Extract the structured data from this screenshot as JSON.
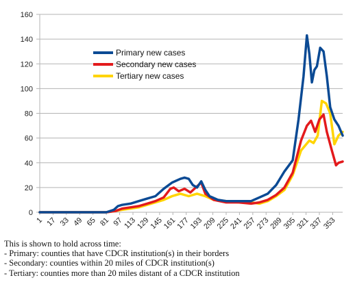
{
  "chart_data": {
    "type": "line",
    "xlabel": "",
    "ylabel": "",
    "ylim": [
      0,
      160
    ],
    "yticks": [
      0,
      20,
      40,
      60,
      80,
      100,
      120,
      140,
      160
    ],
    "xlim": [
      1,
      365
    ],
    "xticks": [
      1,
      17,
      33,
      49,
      65,
      81,
      97,
      113,
      129,
      145,
      161,
      177,
      193,
      209,
      225,
      241,
      257,
      273,
      289,
      305,
      321,
      337,
      353
    ],
    "grid": "horizontal",
    "legend_position": "upper-left",
    "series": [
      {
        "name": "Primary new cases",
        "color": "#0b4a94",
        "x": [
          1,
          81,
          90,
          95,
          100,
          110,
          120,
          130,
          140,
          150,
          160,
          170,
          175,
          180,
          185,
          190,
          195,
          200,
          205,
          215,
          225,
          240,
          255,
          265,
          275,
          285,
          295,
          305,
          312,
          318,
          322,
          325,
          328,
          331,
          334,
          338,
          342,
          346,
          350,
          355,
          360,
          365
        ],
        "values": [
          0,
          0,
          2,
          5,
          6,
          7,
          9,
          11,
          13,
          19,
          24,
          27,
          28,
          27,
          22,
          20,
          25,
          18,
          13,
          10,
          9,
          9,
          9,
          12,
          15,
          22,
          33,
          42,
          75,
          110,
          143,
          128,
          105,
          115,
          118,
          133,
          130,
          110,
          85,
          75,
          70,
          62
        ]
      },
      {
        "name": "Secondary new cases",
        "color": "#e31a1c",
        "x": [
          1,
          81,
          92,
          100,
          110,
          120,
          130,
          140,
          150,
          158,
          162,
          168,
          175,
          182,
          190,
          195,
          200,
          210,
          225,
          240,
          255,
          265,
          275,
          285,
          295,
          305,
          315,
          322,
          327,
          332,
          337,
          342,
          346,
          352,
          357,
          360,
          365
        ],
        "values": [
          0,
          0,
          1,
          3,
          4,
          5,
          7,
          9,
          12,
          19,
          20,
          17,
          19,
          16,
          21,
          24,
          15,
          10,
          8,
          8,
          7,
          8,
          10,
          14,
          20,
          32,
          58,
          70,
          74,
          65,
          75,
          79,
          65,
          50,
          38,
          40,
          41
        ]
      },
      {
        "name": "Tertiary new cases",
        "color": "#ffd400",
        "x": [
          1,
          81,
          92,
          100,
          110,
          120,
          130,
          140,
          150,
          160,
          170,
          180,
          190,
          200,
          210,
          225,
          240,
          255,
          265,
          275,
          285,
          295,
          305,
          315,
          325,
          330,
          335,
          340,
          345,
          350,
          355,
          360,
          365
        ],
        "values": [
          0,
          0,
          1,
          2,
          3,
          4,
          6,
          8,
          10,
          13,
          15,
          13,
          15,
          13,
          10,
          9,
          8,
          8,
          7,
          9,
          13,
          18,
          30,
          50,
          58,
          56,
          62,
          90,
          88,
          80,
          55,
          62,
          65
        ]
      }
    ]
  },
  "caption": {
    "line1": "This is shown to hold across time:",
    "line2": "- Primary: counties that have CDCR institution(s) in their borders",
    "line3": "- Secondary: counties within 20 miles of CDCR institution(s)",
    "line4": "- Tertiary: counties more than 20 miles distant of a CDCR institution"
  }
}
